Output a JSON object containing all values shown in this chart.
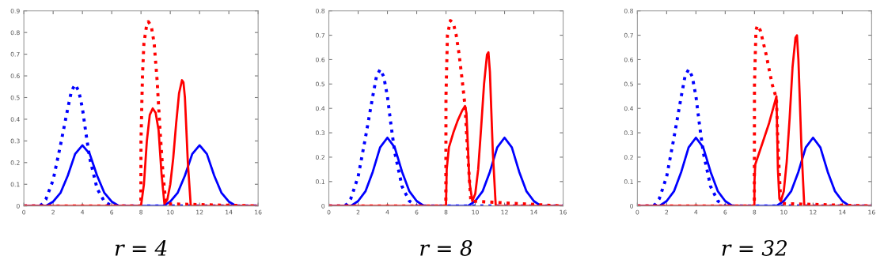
{
  "chart_data": [
    {
      "type": "line",
      "xlabel": "r = 4",
      "xlim": [
        0,
        16
      ],
      "xticks": [
        0,
        2,
        4,
        6,
        8,
        10,
        12,
        14,
        16
      ],
      "ylim": [
        0,
        0.9
      ],
      "yticks": [
        0,
        0.1,
        0.2,
        0.3,
        0.4,
        0.5,
        0.6,
        0.7,
        0.8,
        0.9
      ],
      "grid": false,
      "legend": false,
      "series": [
        {
          "color": "#0000ff",
          "line_style": "dotted",
          "x": [
            0,
            1,
            1.2,
            1.5,
            2,
            2.5,
            3,
            3.25,
            3.5,
            3.75,
            4,
            4.25,
            4.5,
            5,
            5.5,
            6,
            16
          ],
          "values": [
            0,
            0,
            0.005,
            0.03,
            0.12,
            0.28,
            0.45,
            0.53,
            0.56,
            0.53,
            0.45,
            0.33,
            0.22,
            0.08,
            0.02,
            0,
            0
          ]
        },
        {
          "color": "#0000ff",
          "line_style": "solid",
          "x": [
            0,
            1.5,
            2,
            2.5,
            3,
            3.5,
            4,
            4.5,
            5,
            5.5,
            6,
            6.5,
            9.5,
            10,
            10.5,
            11,
            11.5,
            12,
            12.5,
            13,
            13.5,
            14,
            14.5,
            16
          ],
          "values": [
            0,
            0,
            0.02,
            0.06,
            0.14,
            0.24,
            0.28,
            0.24,
            0.14,
            0.06,
            0.02,
            0,
            0,
            0.02,
            0.06,
            0.14,
            0.24,
            0.28,
            0.24,
            0.14,
            0.06,
            0.02,
            0,
            0
          ]
        },
        {
          "color": "#ff0000",
          "line_style": "dotted",
          "x": [
            0,
            7.99,
            8.0,
            8.1,
            8.2,
            8.4,
            8.5,
            8.7,
            8.9,
            9.1,
            9.3,
            9.5,
            9.7,
            16
          ],
          "values": [
            0,
            0,
            0.3,
            0.6,
            0.75,
            0.84,
            0.85,
            0.83,
            0.75,
            0.58,
            0.35,
            0.15,
            0.01,
            0
          ]
        },
        {
          "color": "#ff0000",
          "line_style": "solid",
          "x": [
            0,
            8,
            8.2,
            8.4,
            8.6,
            8.8,
            9.0,
            9.2,
            9.4,
            9.6,
            9.8,
            10.0,
            10.2,
            10.4,
            10.6,
            10.8,
            10.9,
            11.0,
            11.2,
            11.4,
            16
          ],
          "values": [
            0,
            0,
            0.1,
            0.3,
            0.42,
            0.45,
            0.43,
            0.35,
            0.15,
            0.01,
            0.03,
            0.1,
            0.22,
            0.38,
            0.52,
            0.58,
            0.57,
            0.5,
            0.2,
            0,
            0
          ]
        }
      ]
    },
    {
      "type": "line",
      "xlabel": "r = 8",
      "xlim": [
        0,
        16
      ],
      "xticks": [
        0,
        2,
        4,
        6,
        8,
        10,
        12,
        14,
        16
      ],
      "ylim": [
        0,
        0.8
      ],
      "yticks": [
        0,
        0.1,
        0.2,
        0.3,
        0.4,
        0.5,
        0.6,
        0.7,
        0.8
      ],
      "grid": false,
      "legend": false,
      "series": [
        {
          "color": "#0000ff",
          "line_style": "dotted",
          "x": [
            0,
            1,
            1.2,
            1.5,
            2,
            2.5,
            3,
            3.25,
            3.5,
            3.75,
            4,
            4.25,
            4.5,
            5,
            5.5,
            6,
            16
          ],
          "values": [
            0,
            0,
            0.005,
            0.03,
            0.12,
            0.28,
            0.45,
            0.53,
            0.56,
            0.53,
            0.45,
            0.33,
            0.22,
            0.08,
            0.02,
            0,
            0
          ]
        },
        {
          "color": "#0000ff",
          "line_style": "solid",
          "x": [
            0,
            1.5,
            2,
            2.5,
            3,
            3.5,
            4,
            4.5,
            5,
            5.5,
            6,
            6.5,
            9.5,
            10,
            10.5,
            11,
            11.5,
            12,
            12.5,
            13,
            13.5,
            14,
            14.5,
            16
          ],
          "values": [
            0,
            0,
            0.02,
            0.06,
            0.14,
            0.24,
            0.28,
            0.24,
            0.14,
            0.06,
            0.02,
            0,
            0,
            0.02,
            0.06,
            0.14,
            0.24,
            0.28,
            0.24,
            0.14,
            0.06,
            0.02,
            0,
            0
          ]
        },
        {
          "color": "#ff0000",
          "line_style": "dotted",
          "x": [
            0,
            7.99,
            8,
            8.1,
            8.3,
            8.5,
            8.7,
            8.9,
            9.1,
            9.3,
            9.5,
            9.7,
            16
          ],
          "values": [
            0,
            0,
            0.45,
            0.7,
            0.76,
            0.75,
            0.7,
            0.62,
            0.52,
            0.41,
            0.2,
            0.02,
            0
          ]
        },
        {
          "color": "#ff0000",
          "line_style": "solid",
          "x": [
            0,
            8,
            8.05,
            8.2,
            8.5,
            8.8,
            9.1,
            9.3,
            9.4,
            9.6,
            9.8,
            10.0,
            10.2,
            10.4,
            10.6,
            10.8,
            10.9,
            11.0,
            11.2,
            11.4,
            16
          ],
          "values": [
            0,
            0,
            0.15,
            0.24,
            0.3,
            0.35,
            0.39,
            0.41,
            0.38,
            0.1,
            0.02,
            0.05,
            0.15,
            0.32,
            0.5,
            0.62,
            0.63,
            0.55,
            0.22,
            0,
            0
          ]
        }
      ]
    },
    {
      "type": "line",
      "xlabel": "r = 32",
      "xlim": [
        0,
        16
      ],
      "xticks": [
        0,
        2,
        4,
        6,
        8,
        10,
        12,
        14,
        16
      ],
      "ylim": [
        0,
        0.8
      ],
      "yticks": [
        0,
        0.1,
        0.2,
        0.3,
        0.4,
        0.5,
        0.6,
        0.7,
        0.8
      ],
      "grid": false,
      "legend": false,
      "series": [
        {
          "color": "#0000ff",
          "line_style": "dotted",
          "x": [
            0,
            1,
            1.2,
            1.5,
            2,
            2.5,
            3,
            3.25,
            3.5,
            3.75,
            4,
            4.25,
            4.5,
            5,
            5.5,
            6,
            16
          ],
          "values": [
            0,
            0,
            0.005,
            0.03,
            0.12,
            0.28,
            0.45,
            0.53,
            0.56,
            0.53,
            0.45,
            0.33,
            0.22,
            0.08,
            0.02,
            0,
            0
          ]
        },
        {
          "color": "#0000ff",
          "line_style": "solid",
          "x": [
            0,
            1.5,
            2,
            2.5,
            3,
            3.5,
            4,
            4.5,
            5,
            5.5,
            6,
            6.5,
            9.5,
            10,
            10.5,
            11,
            11.5,
            12,
            12.5,
            13,
            13.5,
            14,
            14.5,
            16
          ],
          "values": [
            0,
            0,
            0.02,
            0.06,
            0.14,
            0.24,
            0.28,
            0.24,
            0.14,
            0.06,
            0.02,
            0,
            0,
            0.02,
            0.06,
            0.14,
            0.24,
            0.28,
            0.24,
            0.14,
            0.06,
            0.02,
            0,
            0
          ]
        },
        {
          "color": "#ff0000",
          "line_style": "dotted",
          "x": [
            0,
            7.99,
            8,
            8.1,
            8.2,
            8.4,
            8.6,
            8.8,
            9.0,
            9.2,
            9.4,
            9.5,
            9.6,
            9.8,
            16
          ],
          "values": [
            0,
            0,
            0.5,
            0.72,
            0.74,
            0.72,
            0.67,
            0.62,
            0.56,
            0.5,
            0.46,
            0.44,
            0.25,
            0.01,
            0
          ]
        },
        {
          "color": "#ff0000",
          "line_style": "solid",
          "x": [
            0,
            7.99,
            8.0,
            8.05,
            8.5,
            9.0,
            9.5,
            9.6,
            9.7,
            9.8,
            10.0,
            10.2,
            10.4,
            10.6,
            10.8,
            10.9,
            11.0,
            11.2,
            11.4,
            16
          ],
          "values": [
            0,
            0,
            0.1,
            0.17,
            0.25,
            0.34,
            0.45,
            0.15,
            0.03,
            0.02,
            0.06,
            0.18,
            0.36,
            0.57,
            0.69,
            0.7,
            0.6,
            0.25,
            0,
            0
          ]
        }
      ]
    }
  ]
}
